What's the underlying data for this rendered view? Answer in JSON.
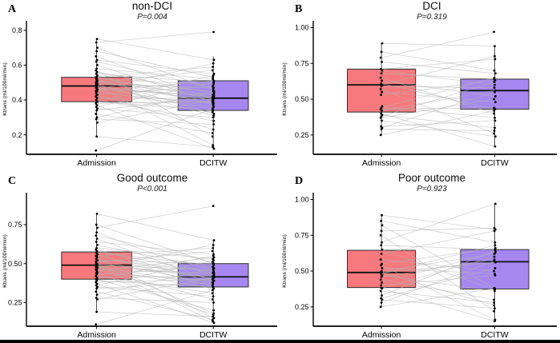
{
  "figure": {
    "y_axis_label": "Ktrans (ml/100ml/min)",
    "x_categories": [
      "Admission",
      "DCITW"
    ],
    "colors": {
      "admission_box": "#F8797D",
      "dcitw_box": "#A687F0",
      "box_border": "#2E2E2E",
      "median_line": "#101010",
      "pair_line": "#B4B4B4",
      "point": "#000000",
      "axis": "#000000",
      "bottom_border": "#000000"
    }
  },
  "chart_data": [
    {
      "panel": "A",
      "type": "line",
      "variant": "paired-boxplots-with-individual-subject-lines",
      "title": "non-DCI",
      "p_label": "P=0.004",
      "x_categories": [
        "Admission",
        "DCITW"
      ],
      "ylabel": "Ktrans (ml/100ml/min)",
      "ytick_labels": [
        "0.2",
        "0.4",
        "0.6",
        "0.8"
      ],
      "ylim": [
        0.088,
        0.836
      ],
      "legend": "none",
      "grid": false,
      "boxes": [
        {
          "group": "Admission",
          "q1": 0.39,
          "median": 0.48,
          "q3": 0.53,
          "whisker_low": 0.19,
          "whisker_high": 0.75
        },
        {
          "group": "DCITW",
          "q1": 0.34,
          "median": 0.41,
          "q3": 0.51,
          "whisker_low": 0.12,
          "whisker_high": 0.65
        }
      ],
      "pairs": [
        [
          0.11,
          0.35
        ],
        [
          0.19,
          0.13
        ],
        [
          0.27,
          0.4
        ],
        [
          0.29,
          0.26
        ],
        [
          0.3,
          0.45
        ],
        [
          0.32,
          0.21
        ],
        [
          0.34,
          0.42
        ],
        [
          0.35,
          0.3
        ],
        [
          0.36,
          0.5
        ],
        [
          0.37,
          0.12
        ],
        [
          0.38,
          0.39
        ],
        [
          0.39,
          0.34
        ],
        [
          0.39,
          0.54
        ],
        [
          0.4,
          0.28
        ],
        [
          0.41,
          0.41
        ],
        [
          0.42,
          0.33
        ],
        [
          0.43,
          0.48
        ],
        [
          0.43,
          0.23
        ],
        [
          0.44,
          0.38
        ],
        [
          0.45,
          0.51
        ],
        [
          0.45,
          0.35
        ],
        [
          0.46,
          0.43
        ],
        [
          0.46,
          0.61
        ],
        [
          0.47,
          0.36
        ],
        [
          0.47,
          0.42
        ],
        [
          0.48,
          0.4
        ],
        [
          0.48,
          0.14
        ],
        [
          0.49,
          0.47
        ],
        [
          0.49,
          0.31
        ],
        [
          0.5,
          0.43
        ],
        [
          0.5,
          0.57
        ],
        [
          0.51,
          0.38
        ],
        [
          0.51,
          0.45
        ],
        [
          0.52,
          0.49
        ],
        [
          0.52,
          0.32
        ],
        [
          0.53,
          0.41
        ],
        [
          0.53,
          0.59
        ],
        [
          0.54,
          0.37
        ],
        [
          0.55,
          0.5
        ],
        [
          0.56,
          0.44
        ],
        [
          0.57,
          0.19
        ],
        [
          0.58,
          0.52
        ],
        [
          0.6,
          0.39
        ],
        [
          0.62,
          0.47
        ],
        [
          0.63,
          0.55
        ],
        [
          0.65,
          0.4
        ],
        [
          0.68,
          0.53
        ],
        [
          0.7,
          0.46
        ],
        [
          0.73,
          0.79
        ],
        [
          0.75,
          0.63
        ]
      ]
    },
    {
      "panel": "B",
      "type": "line",
      "variant": "paired-boxplots-with-individual-subject-lines",
      "title": "DCI",
      "p_label": "P=0.319",
      "x_categories": [
        "Admission",
        "DCITW"
      ],
      "ylabel": "Ktrans (ml/100ml/min)",
      "ytick_labels": [
        "0.25",
        "0.50",
        "0.75",
        "1.00"
      ],
      "ylim": [
        0.115,
        1.025
      ],
      "legend": "none",
      "grid": false,
      "boxes": [
        {
          "group": "Admission",
          "q1": 0.41,
          "median": 0.6,
          "q3": 0.71,
          "whisker_low": 0.25,
          "whisker_high": 0.89
        },
        {
          "group": "DCITW",
          "q1": 0.43,
          "median": 0.56,
          "q3": 0.64,
          "whisker_low": 0.17,
          "whisker_high": 0.87
        }
      ],
      "pairs": [
        [
          0.25,
          0.42
        ],
        [
          0.29,
          0.28
        ],
        [
          0.3,
          0.55
        ],
        [
          0.31,
          0.35
        ],
        [
          0.35,
          0.24
        ],
        [
          0.37,
          0.5
        ],
        [
          0.38,
          0.62
        ],
        [
          0.39,
          0.3
        ],
        [
          0.4,
          0.17
        ],
        [
          0.42,
          0.56
        ],
        [
          0.43,
          0.44
        ],
        [
          0.44,
          0.65
        ],
        [
          0.45,
          0.37
        ],
        [
          0.53,
          0.63
        ],
        [
          0.55,
          0.48
        ],
        [
          0.57,
          0.26
        ],
        [
          0.59,
          0.58
        ],
        [
          0.6,
          0.8
        ],
        [
          0.61,
          0.43
        ],
        [
          0.63,
          0.52
        ],
        [
          0.65,
          0.4
        ],
        [
          0.68,
          0.64
        ],
        [
          0.7,
          0.6
        ],
        [
          0.71,
          0.78
        ],
        [
          0.76,
          0.68
        ],
        [
          0.79,
          0.97
        ],
        [
          0.83,
          0.7
        ],
        [
          0.89,
          0.87
        ]
      ]
    },
    {
      "panel": "C",
      "type": "line",
      "variant": "paired-boxplots-with-individual-subject-lines",
      "title": "Good outcome",
      "p_label": "P<0.001",
      "x_categories": [
        "Admission",
        "DCITW"
      ],
      "ylabel": "Ktrans (ml/100ml/min)",
      "ytick_labels": [
        "0.25",
        "0.50",
        "0.75"
      ],
      "ylim": [
        0.098,
        0.935
      ],
      "legend": "none",
      "grid": false,
      "boxes": [
        {
          "group": "Admission",
          "q1": 0.4,
          "median": 0.49,
          "q3": 0.575,
          "whisker_low": 0.19,
          "whisker_high": 0.82
        },
        {
          "group": "DCITW",
          "q1": 0.35,
          "median": 0.415,
          "q3": 0.5,
          "whisker_low": 0.12,
          "whisker_high": 0.65
        }
      ],
      "pairs": [
        [
          0.11,
          0.33
        ],
        [
          0.19,
          0.16
        ],
        [
          0.27,
          0.41
        ],
        [
          0.28,
          0.25
        ],
        [
          0.3,
          0.47
        ],
        [
          0.32,
          0.14
        ],
        [
          0.34,
          0.38
        ],
        [
          0.35,
          0.29
        ],
        [
          0.36,
          0.52
        ],
        [
          0.37,
          0.12
        ],
        [
          0.38,
          0.4
        ],
        [
          0.39,
          0.35
        ],
        [
          0.4,
          0.55
        ],
        [
          0.4,
          0.2
        ],
        [
          0.41,
          0.42
        ],
        [
          0.42,
          0.31
        ],
        [
          0.43,
          0.48
        ],
        [
          0.44,
          0.17
        ],
        [
          0.44,
          0.39
        ],
        [
          0.45,
          0.54
        ],
        [
          0.46,
          0.27
        ],
        [
          0.46,
          0.44
        ],
        [
          0.47,
          0.62
        ],
        [
          0.47,
          0.34
        ],
        [
          0.48,
          0.43
        ],
        [
          0.48,
          0.36
        ],
        [
          0.49,
          0.13
        ],
        [
          0.49,
          0.46
        ],
        [
          0.5,
          0.18
        ],
        [
          0.5,
          0.41
        ],
        [
          0.51,
          0.58
        ],
        [
          0.52,
          0.37
        ],
        [
          0.52,
          0.5
        ],
        [
          0.53,
          0.45
        ],
        [
          0.54,
          0.15
        ],
        [
          0.55,
          0.4
        ],
        [
          0.55,
          0.6
        ],
        [
          0.56,
          0.35
        ],
        [
          0.57,
          0.49
        ],
        [
          0.58,
          0.44
        ],
        [
          0.59,
          0.38
        ],
        [
          0.6,
          0.53
        ],
        [
          0.62,
          0.47
        ],
        [
          0.64,
          0.56
        ],
        [
          0.66,
          0.39
        ],
        [
          0.68,
          0.51
        ],
        [
          0.7,
          0.42
        ],
        [
          0.73,
          0.87
        ],
        [
          0.75,
          0.5
        ],
        [
          0.82,
          0.65
        ]
      ]
    },
    {
      "panel": "D",
      "type": "line",
      "variant": "paired-boxplots-with-individual-subject-lines",
      "title": "Poor outcome",
      "p_label": "P=0.923",
      "x_categories": [
        "Admission",
        "DCITW"
      ],
      "ylabel": "Ktrans (ml/100ml/min)",
      "ytick_labels": [
        "0.25",
        "0.50",
        "0.75",
        "1.00"
      ],
      "ylim": [
        0.115,
        1.025
      ],
      "legend": "none",
      "grid": false,
      "boxes": [
        {
          "group": "Admission",
          "q1": 0.385,
          "median": 0.49,
          "q3": 0.645,
          "whisker_low": 0.25,
          "whisker_high": 0.89
        },
        {
          "group": "DCITW",
          "q1": 0.375,
          "median": 0.565,
          "q3": 0.65,
          "whisker_low": 0.15,
          "whisker_high": 0.97
        }
      ],
      "pairs": [
        [
          0.25,
          0.38
        ],
        [
          0.28,
          0.57
        ],
        [
          0.3,
          0.24
        ],
        [
          0.31,
          0.52
        ],
        [
          0.33,
          0.64
        ],
        [
          0.36,
          0.28
        ],
        [
          0.38,
          0.6
        ],
        [
          0.38,
          0.15
        ],
        [
          0.4,
          0.47
        ],
        [
          0.42,
          0.63
        ],
        [
          0.44,
          0.3
        ],
        [
          0.46,
          0.58
        ],
        [
          0.47,
          0.36
        ],
        [
          0.48,
          0.68
        ],
        [
          0.49,
          0.56
        ],
        [
          0.49,
          0.26
        ],
        [
          0.5,
          0.62
        ],
        [
          0.52,
          0.48
        ],
        [
          0.54,
          0.16
        ],
        [
          0.55,
          0.66
        ],
        [
          0.58,
          0.5
        ],
        [
          0.62,
          0.78
        ],
        [
          0.65,
          0.37
        ],
        [
          0.68,
          0.65
        ],
        [
          0.7,
          0.97
        ],
        [
          0.75,
          0.22
        ],
        [
          0.78,
          0.8
        ],
        [
          0.82,
          0.38
        ],
        [
          0.85,
          0.7
        ],
        [
          0.89,
          0.79
        ]
      ]
    }
  ]
}
